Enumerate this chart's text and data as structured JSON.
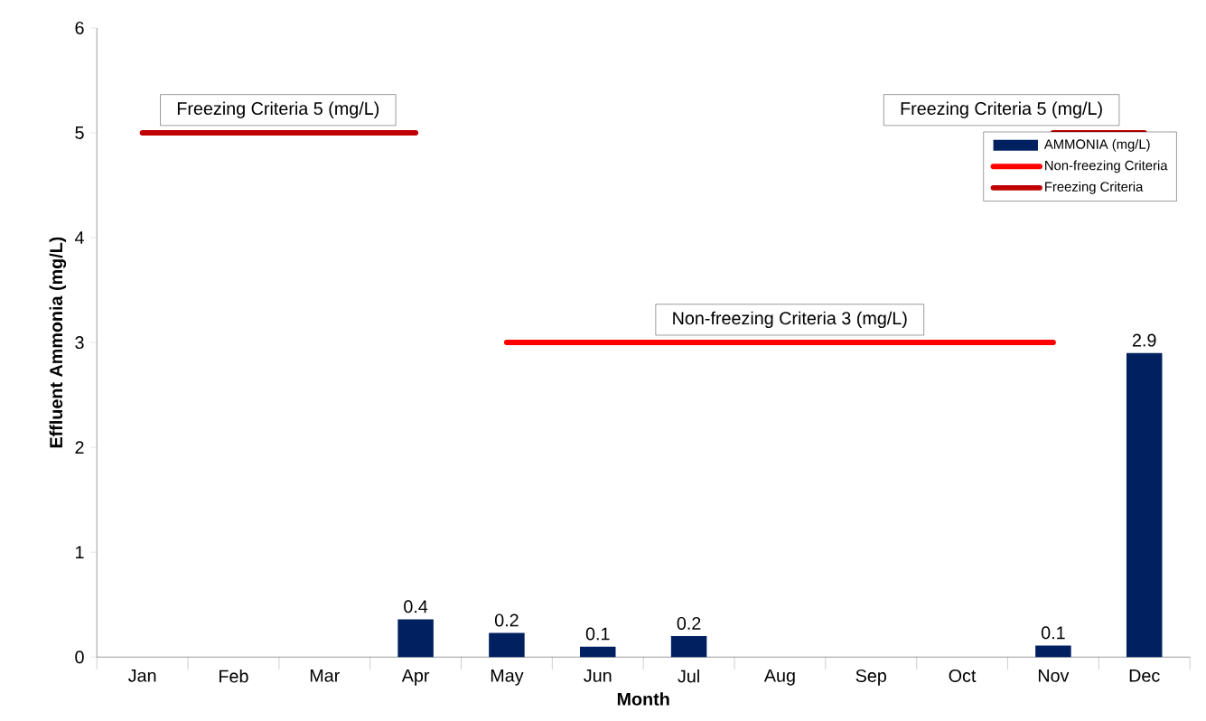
{
  "chart_data": {
    "type": "bar",
    "xlabel": "Month",
    "ylabel": "Effluent Ammonia (mg/L)",
    "categories": [
      "Jan",
      "Feb",
      "Mar",
      "Apr",
      "May",
      "Jun",
      "Jul",
      "Aug",
      "Sep",
      "Oct",
      "Nov",
      "Dec"
    ],
    "series": [
      {
        "name": "AMMONIA (mg/L)",
        "type": "bar",
        "color": "#002060",
        "values": [
          null,
          null,
          null,
          0.36,
          0.23,
          0.1,
          0.2,
          null,
          null,
          null,
          0.11,
          2.9
        ],
        "value_labels": [
          null,
          null,
          null,
          "0.4",
          "0.2",
          "0.1",
          "0.2",
          null,
          null,
          null,
          "0.1",
          "2.9"
        ]
      },
      {
        "name": "Non-freezing Criteria",
        "type": "line",
        "color": "#ff0000",
        "values": [
          null,
          null,
          null,
          null,
          3,
          3,
          3,
          3,
          3,
          3,
          3,
          null
        ]
      },
      {
        "name": "Freezing Criteria",
        "type": "line",
        "color": "#c00000",
        "values": [
          5,
          5,
          5,
          5,
          null,
          null,
          null,
          null,
          null,
          null,
          5,
          5
        ]
      }
    ],
    "ylim": [
      0,
      6
    ],
    "yticks": [
      0,
      1,
      2,
      3,
      4,
      5,
      6
    ],
    "legend": "top right",
    "annotations": [
      {
        "text": "Freezing Criteria 5 (mg/L)",
        "x": "Feb",
        "y": 5
      },
      {
        "text": "Freezing Criteria 5 (mg/L)",
        "x": "Nov",
        "y": 5
      },
      {
        "text": "Non-freezing Criteria 3 (mg/L)",
        "x": "Aug",
        "y": 3
      }
    ]
  }
}
